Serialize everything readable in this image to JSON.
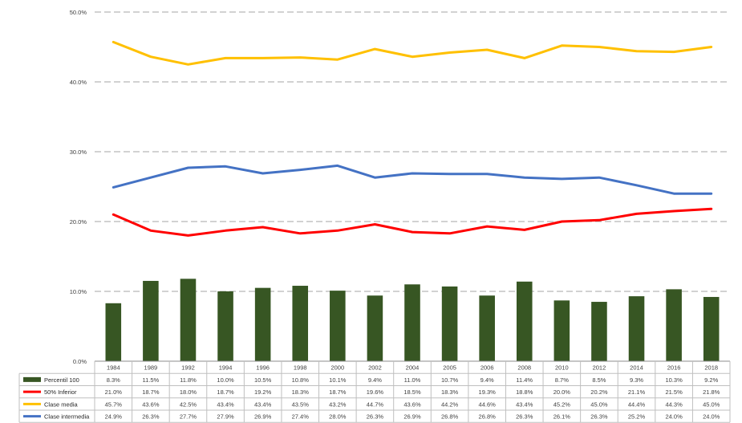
{
  "chart_data": {
    "type": "bar+line with data table",
    "categories": [
      "1984",
      "1989",
      "1992",
      "1994",
      "1996",
      "1998",
      "2000",
      "2002",
      "2004",
      "2005",
      "2006",
      "2008",
      "2010",
      "2012",
      "2014",
      "2016",
      "2018"
    ],
    "ylim": [
      0,
      50
    ],
    "yticks": [
      "0.0%",
      "10.0%",
      "20.0%",
      "30.0%",
      "40.0%",
      "50.0%"
    ],
    "y_tick_values": [
      0,
      10,
      20,
      30,
      40,
      50
    ],
    "grid": "horizontal dashed",
    "legend": "data table below chart",
    "series": [
      {
        "name": "Percentil 100",
        "kind": "bar",
        "color": "#375623",
        "values": [
          8.3,
          11.5,
          11.8,
          10.0,
          10.5,
          10.8,
          10.1,
          9.4,
          11.0,
          10.7,
          9.4,
          11.4,
          8.7,
          8.5,
          9.3,
          10.3,
          9.2
        ],
        "labels": [
          "8.3%",
          "11.5%",
          "11.8%",
          "10.0%",
          "10.5%",
          "10.8%",
          "10.1%",
          "9.4%",
          "11.0%",
          "10.7%",
          "9.4%",
          "11.4%",
          "8.7%",
          "8.5%",
          "9.3%",
          "10.3%",
          "9.2%"
        ]
      },
      {
        "name": "50% Inferior",
        "kind": "line",
        "color": "#ff0000",
        "values": [
          21.0,
          18.7,
          18.0,
          18.7,
          19.2,
          18.3,
          18.7,
          19.6,
          18.5,
          18.3,
          19.3,
          18.8,
          20.0,
          20.2,
          21.1,
          21.5,
          21.8
        ],
        "labels": [
          "21.0%",
          "18.7%",
          "18.0%",
          "18.7%",
          "19.2%",
          "18.3%",
          "18.7%",
          "19.6%",
          "18.5%",
          "18.3%",
          "19.3%",
          "18.8%",
          "20.0%",
          "20.2%",
          "21.1%",
          "21.5%",
          "21.8%"
        ]
      },
      {
        "name": "Clase media",
        "kind": "line",
        "color": "#ffc000",
        "values": [
          45.7,
          43.6,
          42.5,
          43.4,
          43.4,
          43.5,
          43.2,
          44.7,
          43.6,
          44.2,
          44.6,
          43.4,
          45.2,
          45.0,
          44.4,
          44.3,
          45.0
        ],
        "labels": [
          "45.7%",
          "43.6%",
          "42.5%",
          "43.4%",
          "43.4%",
          "43.5%",
          "43.2%",
          "44.7%",
          "43.6%",
          "44.2%",
          "44.6%",
          "43.4%",
          "45.2%",
          "45.0%",
          "44.4%",
          "44.3%",
          "45.0%"
        ]
      },
      {
        "name": "Clase intermedia",
        "kind": "line",
        "color": "#4472c4",
        "values": [
          24.9,
          26.3,
          27.7,
          27.9,
          26.9,
          27.4,
          28.0,
          26.3,
          26.9,
          26.8,
          26.8,
          26.3,
          26.1,
          26.3,
          25.2,
          24.0,
          24.0
        ],
        "labels": [
          "24.9%",
          "26.3%",
          "27.7%",
          "27.9%",
          "26.9%",
          "27.4%",
          "28.0%",
          "26.3%",
          "26.9%",
          "26.8%",
          "26.8%",
          "26.3%",
          "26.1%",
          "26.3%",
          "25.2%",
          "24.0%",
          "24.0%"
        ]
      }
    ]
  }
}
